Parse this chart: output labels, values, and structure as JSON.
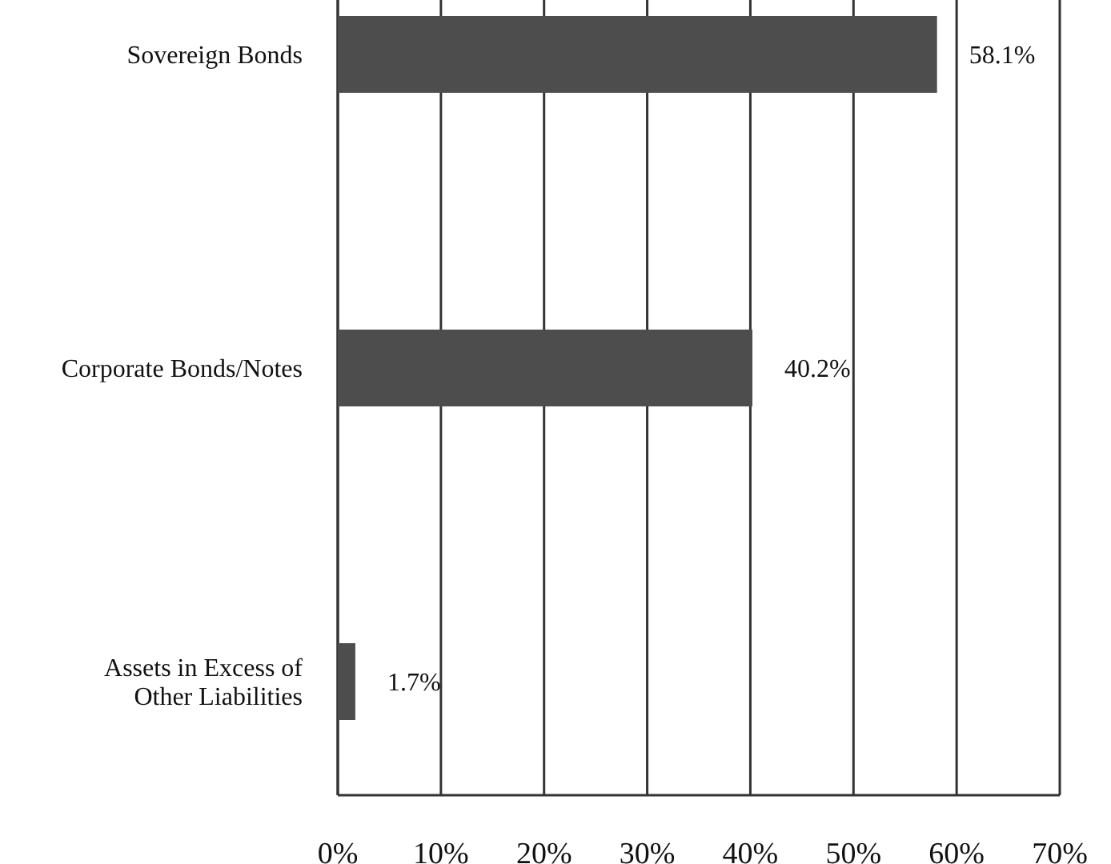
{
  "chart_data": {
    "type": "bar",
    "orientation": "horizontal",
    "categories": [
      "Sovereign Bonds",
      "Corporate Bonds/Notes",
      "Assets in Excess of Other Liabilities"
    ],
    "values": [
      58.1,
      40.2,
      1.7
    ],
    "color": "#4d4d4d",
    "value_labels": [
      "58.1%",
      "40.2%",
      "1.7%"
    ],
    "xlim": [
      0,
      70
    ],
    "xticks": [
      {
        "value": 0,
        "label": "0%"
      },
      {
        "value": 10,
        "label": "10%"
      },
      {
        "value": 20,
        "label": "20%"
      },
      {
        "value": 30,
        "label": "30%"
      },
      {
        "value": 40,
        "label": "40%"
      },
      {
        "value": 50,
        "label": "50%"
      },
      {
        "value": 60,
        "label": "60%"
      },
      {
        "value": 70,
        "label": "70%"
      }
    ],
    "grid": "x"
  }
}
